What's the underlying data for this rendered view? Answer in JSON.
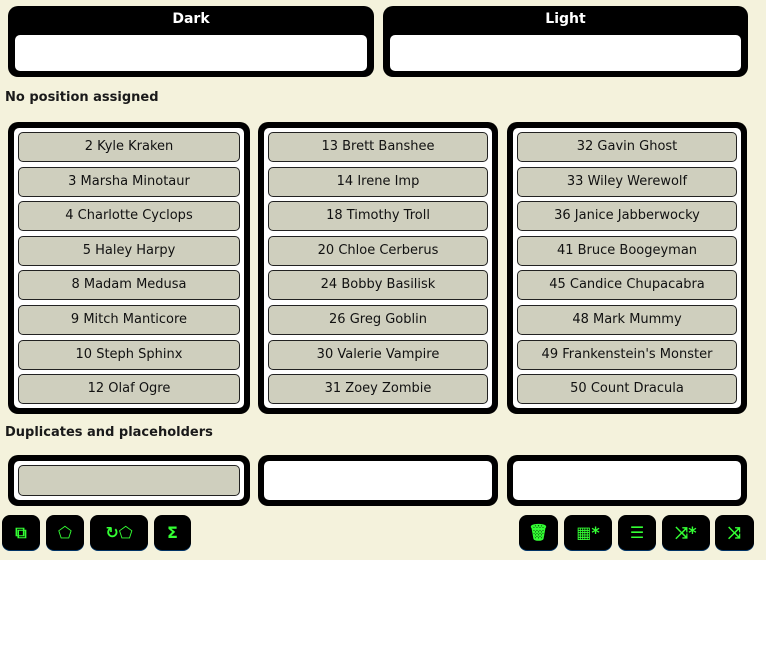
{
  "positions": [
    {
      "title": "Dark"
    },
    {
      "title": "Light"
    }
  ],
  "unassigned_label": "No position assigned",
  "columns": [
    [
      "2 Kyle Kraken",
      "3 Marsha Minotaur",
      "4 Charlotte Cyclops",
      "5 Haley Harpy",
      "8 Madam Medusa",
      "9 Mitch Manticore",
      "10 Steph Sphinx",
      "12 Olaf Ogre"
    ],
    [
      "13 Brett Banshee",
      "14 Irene Imp",
      "18 Timothy Troll",
      "20 Chloe Cerberus",
      "24 Bobby Basilisk",
      "26 Greg Goblin",
      "30 Valerie Vampire",
      "31 Zoey Zombie"
    ],
    [
      "32 Gavin Ghost",
      "33 Wiley Werewolf",
      "36 Janice Jabberwocky",
      "41 Bruce Boogeyman",
      "45 Candice Chupacabra",
      "48 Mark Mummy",
      "49 Frankenstein's Monster",
      "50 Count Dracula"
    ]
  ],
  "duplicates_label": "Duplicates and placeholders",
  "toolbar_left": [
    {
      "icon": "copy-icon",
      "glyph": "⧉"
    },
    {
      "icon": "tag-icon",
      "glyph": "⬠"
    },
    {
      "icon": "refresh-tag-icon",
      "glyph": "↻⬠"
    },
    {
      "icon": "sigma-icon",
      "glyph": "Σ"
    }
  ],
  "toolbar_right": [
    {
      "icon": "trash-icon",
      "glyph": "🗑"
    },
    {
      "icon": "grid-star-icon",
      "glyph": "▦*"
    },
    {
      "icon": "sort-icon",
      "glyph": "☰"
    },
    {
      "icon": "shuffle-star-icon",
      "glyph": "⤨*"
    },
    {
      "icon": "shuffle-icon",
      "glyph": "⤨"
    }
  ],
  "colors": {
    "accent": "#33ff33",
    "background": "#f4f2dc",
    "card": "#cfcfbe"
  }
}
